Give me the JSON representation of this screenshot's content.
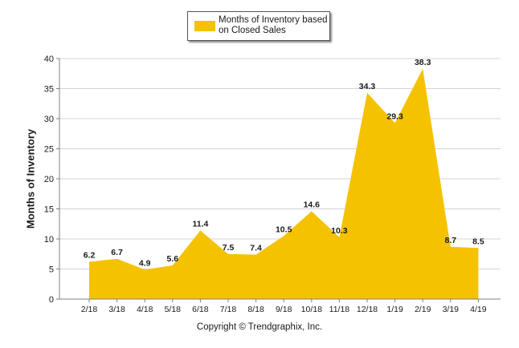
{
  "legend": {
    "label": "Months of Inventory based on Closed Sales"
  },
  "footer": {
    "copyright": "Copyright © Trendgraphix, Inc."
  },
  "colors": {
    "area": "#F5C200",
    "grid": "#d4d4d4",
    "axis": "#808080",
    "text": "#1a1a1a"
  },
  "chart_data": {
    "type": "area",
    "title": "",
    "xlabel": "",
    "ylabel": "Months of Inventory",
    "categories": [
      "2/18",
      "3/18",
      "4/18",
      "5/18",
      "6/18",
      "7/18",
      "8/18",
      "9/18",
      "10/18",
      "11/18",
      "12/18",
      "1/19",
      "2/19",
      "3/19",
      "4/19"
    ],
    "series": [
      {
        "name": "Months of Inventory based on Closed Sales",
        "values": [
          6.2,
          6.7,
          4.9,
          5.6,
          11.4,
          7.5,
          7.4,
          10.5,
          14.6,
          10.3,
          34.3,
          29.3,
          38.3,
          8.7,
          8.5
        ]
      }
    ],
    "data_labels": [
      "6.2",
      "6.7",
      "4.9",
      "5.6",
      "11.4",
      "7.5",
      "7.4",
      "10.5",
      "14.6",
      "10.3",
      "34.3",
      "29.3",
      "38.3",
      "8.7",
      "8.5"
    ],
    "yticks": [
      0,
      5,
      10,
      15,
      20,
      25,
      30,
      35,
      40
    ],
    "ylim": [
      0,
      40
    ],
    "grid": true,
    "legend_position": "top"
  }
}
